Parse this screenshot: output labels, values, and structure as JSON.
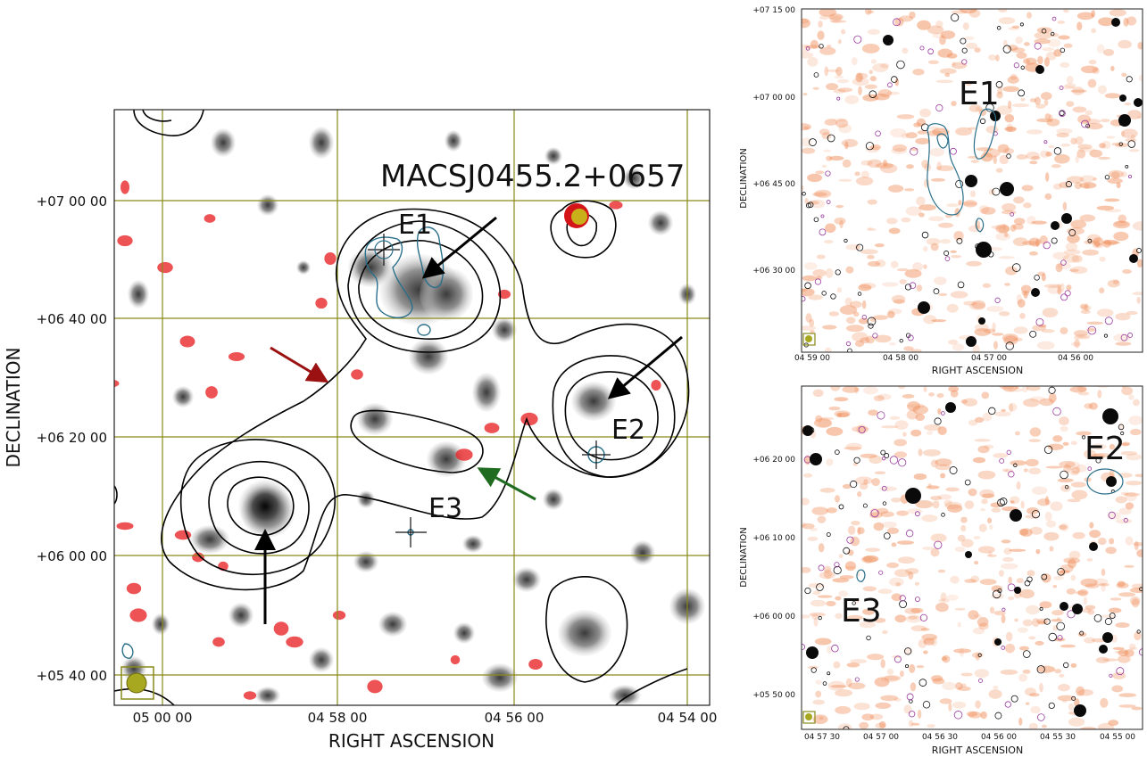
{
  "main_panel": {
    "title": "MACSJ0455.2+0657",
    "xlabel": "RIGHT ASCENSION",
    "ylabel": "DECLINATION",
    "x_ticks": [
      "05 00 00",
      "04 58 00",
      "04 56 00",
      "04 54 00"
    ],
    "y_ticks": [
      "+07 00 00",
      "+06 40 00",
      "+06 20 00",
      "+06 00 00",
      "+05 40 00"
    ],
    "labels": [
      "E1",
      "E2",
      "E3"
    ]
  },
  "top_right_panel": {
    "xlabel": "RIGHT ASCENSION",
    "ylabel": "DECLINATION",
    "x_ticks": [
      "04 59 00",
      "04 58 00",
      "04 57 00",
      "04 56 00"
    ],
    "y_ticks": [
      "+07 15 00",
      "+07 00 00",
      "+06 45 00",
      "+06 30 00"
    ],
    "labels": [
      "E1"
    ]
  },
  "bottom_right_panel": {
    "xlabel": "RIGHT ASCENSION",
    "ylabel": "DECLINATION",
    "x_ticks": [
      "04 57 30",
      "04 57 00",
      "04 56 30",
      "04 56 00",
      "04 55 30",
      "04 55 00"
    ],
    "y_ticks": [
      "+06 20 00",
      "+06 10 00",
      "+06 00 00",
      "+05 50 00"
    ],
    "labels": [
      "E2",
      "E3"
    ]
  },
  "colors": {
    "grid": "#8a8a1a",
    "radio_contour": "#000000",
    "xray_contour": "#2a6f8a",
    "compact_sources": "#e8282a",
    "optical_wash": "#ef8a55",
    "arrow_red": "#9b1111",
    "arrow_green": "#1f6b1f",
    "arrow_black": "#000000",
    "beam": "#a8a820"
  }
}
